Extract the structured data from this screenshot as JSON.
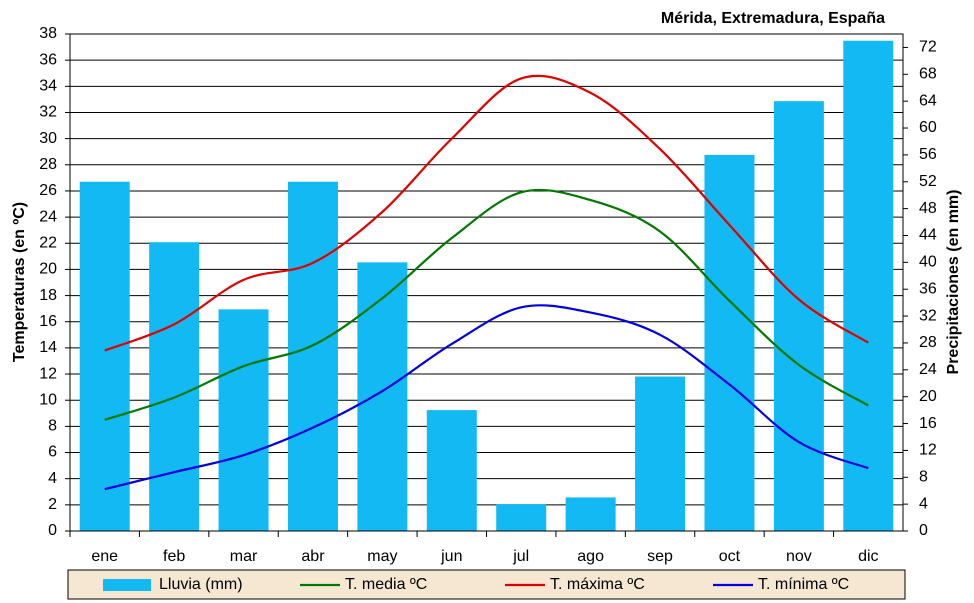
{
  "chart_data": {
    "type": "bar",
    "title": "Mérida, Extremadura, España",
    "y_label": "Temperaturas (en ºC)",
    "y2_label": "Precipitaciones (en mm)",
    "categories": [
      "ene",
      "feb",
      "mar",
      "abr",
      "may",
      "jun",
      "jul",
      "ago",
      "sep",
      "oct",
      "nov",
      "dic"
    ],
    "ylim": [
      0,
      38
    ],
    "yticks": [
      0,
      2,
      4,
      6,
      8,
      10,
      12,
      14,
      16,
      18,
      20,
      22,
      24,
      26,
      28,
      30,
      32,
      34,
      36,
      38
    ],
    "y2lim": [
      0,
      74
    ],
    "y2ticks": [
      0,
      4,
      8,
      12,
      16,
      20,
      24,
      28,
      32,
      36,
      40,
      44,
      48,
      52,
      56,
      60,
      64,
      68,
      72
    ],
    "grid": true,
    "legend": "bottom",
    "series": [
      {
        "name": "Lluvia (mm)",
        "type": "bar",
        "axis": "y2",
        "color": "#12b9f2",
        "values": [
          52,
          43,
          33,
          52,
          40,
          18,
          4,
          5,
          23,
          56,
          64,
          73
        ]
      },
      {
        "name": "T. media ºC",
        "type": "line",
        "color": "#007800",
        "values": [
          8.5,
          10.2,
          12.6,
          14.2,
          17.8,
          22.4,
          25.9,
          25.3,
          22.9,
          17.6,
          12.7,
          9.6
        ]
      },
      {
        "name": "T. máxima ºC",
        "type": "line",
        "color": "#e00000",
        "values": [
          13.8,
          15.8,
          19.2,
          20.5,
          24.4,
          30,
          34.6,
          33.5,
          29.2,
          23.4,
          17.7,
          14.4
        ]
      },
      {
        "name": "T. mínima ºC",
        "type": "line",
        "color": "#0000e0",
        "values": [
          3.2,
          4.5,
          5.8,
          7.9,
          10.7,
          14.3,
          17.1,
          16.7,
          15,
          11.2,
          6.8,
          4.8
        ]
      }
    ]
  }
}
